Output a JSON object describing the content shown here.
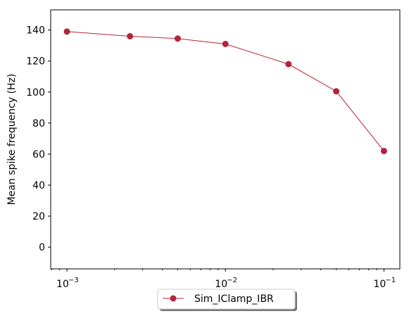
{
  "chart_data": {
    "type": "line",
    "xscale": "log",
    "x": [
      0.001,
      0.0025,
      0.005,
      0.01,
      0.025,
      0.05,
      0.1
    ],
    "series": [
      {
        "name": "Sim_IClamp_IBR",
        "values": [
          139,
          136,
          134.5,
          131,
          118,
          100.5,
          62
        ],
        "color": "#b5243a",
        "marker": "circle"
      }
    ],
    "xlabel": "",
    "ylabel": "Mean spike frequency (Hz)",
    "xlim": [
      0.00079,
      0.126
    ],
    "ylim": [
      -14,
      153
    ],
    "yticks": [
      "0",
      "20",
      "40",
      "60",
      "80",
      "100",
      "120",
      "140"
    ],
    "xticks": [
      {
        "base": "10",
        "exp": "−3"
      },
      {
        "base": "10",
        "exp": "−2"
      },
      {
        "base": "10",
        "exp": "−1"
      }
    ],
    "grid": false,
    "legend_position": "below-center"
  }
}
